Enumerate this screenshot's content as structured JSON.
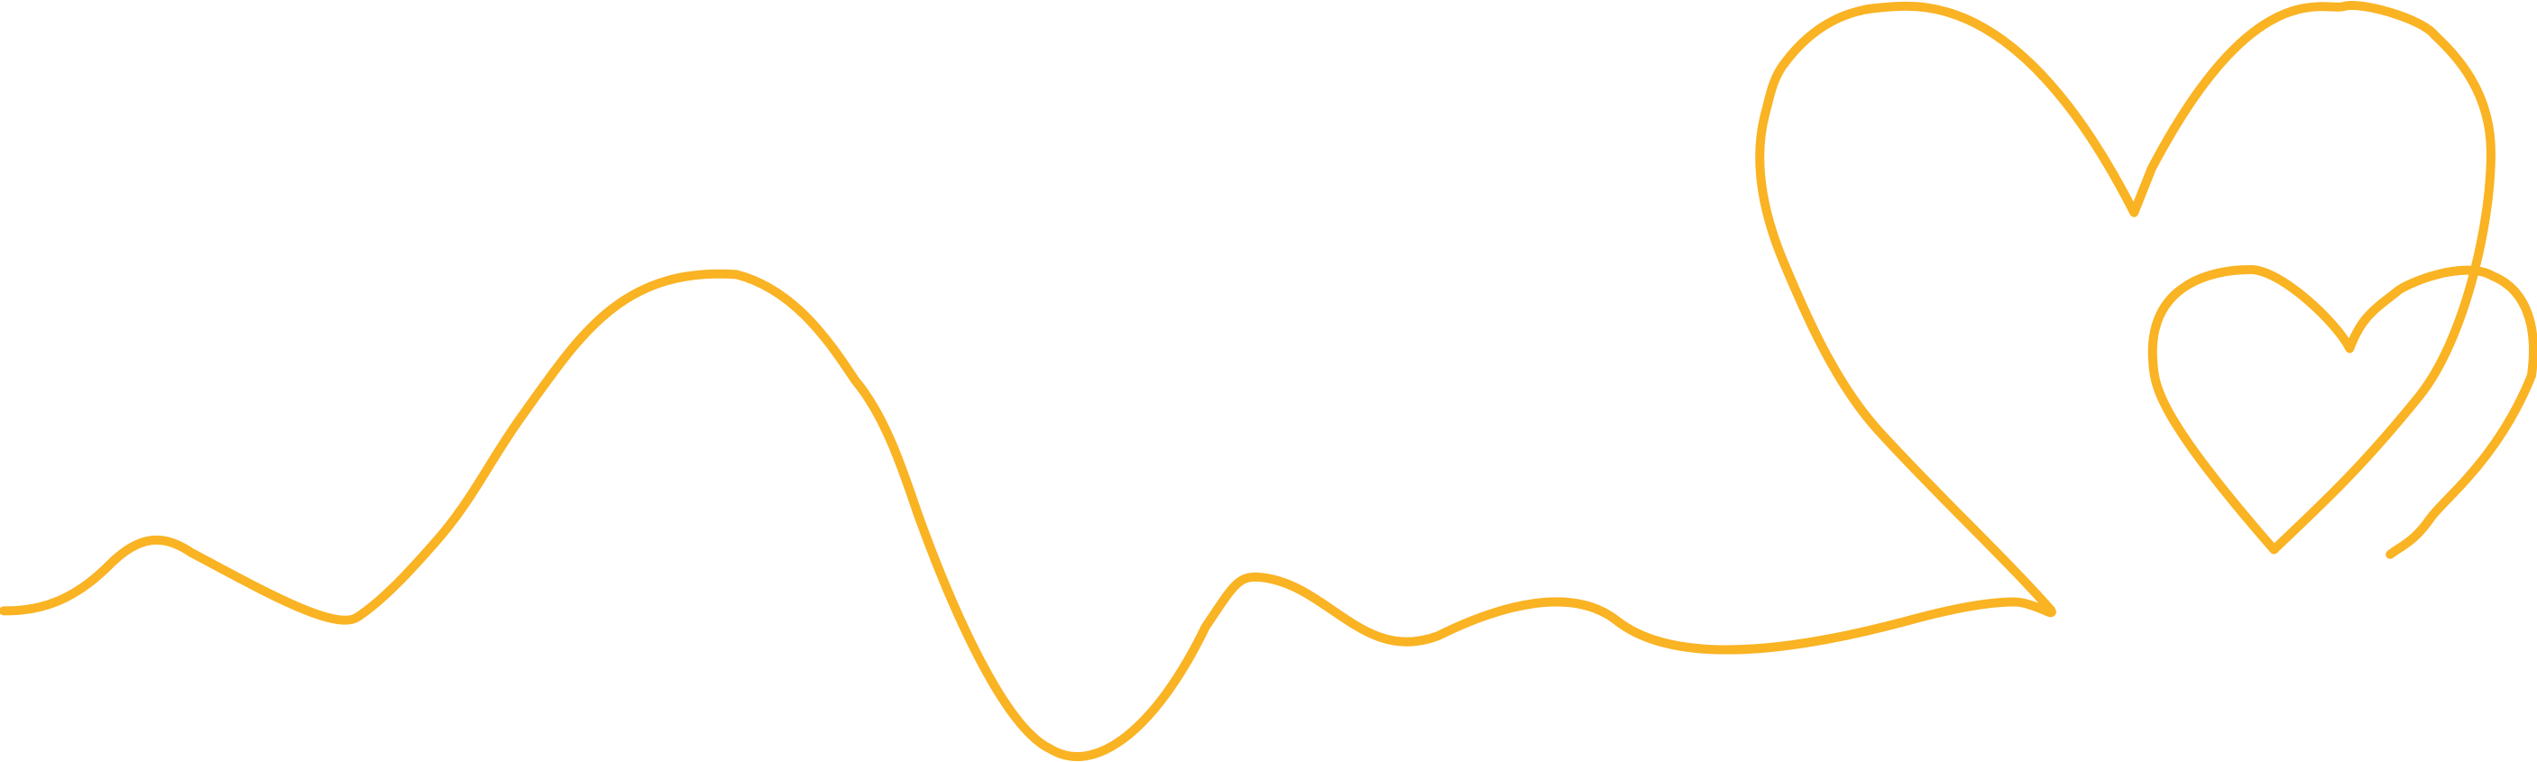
{
  "artwork": {
    "stroke_color": "#F9B323",
    "background_color": "#FFFFFF",
    "shapes": [
      "wavy-line",
      "large-heart",
      "small-heart"
    ]
  }
}
